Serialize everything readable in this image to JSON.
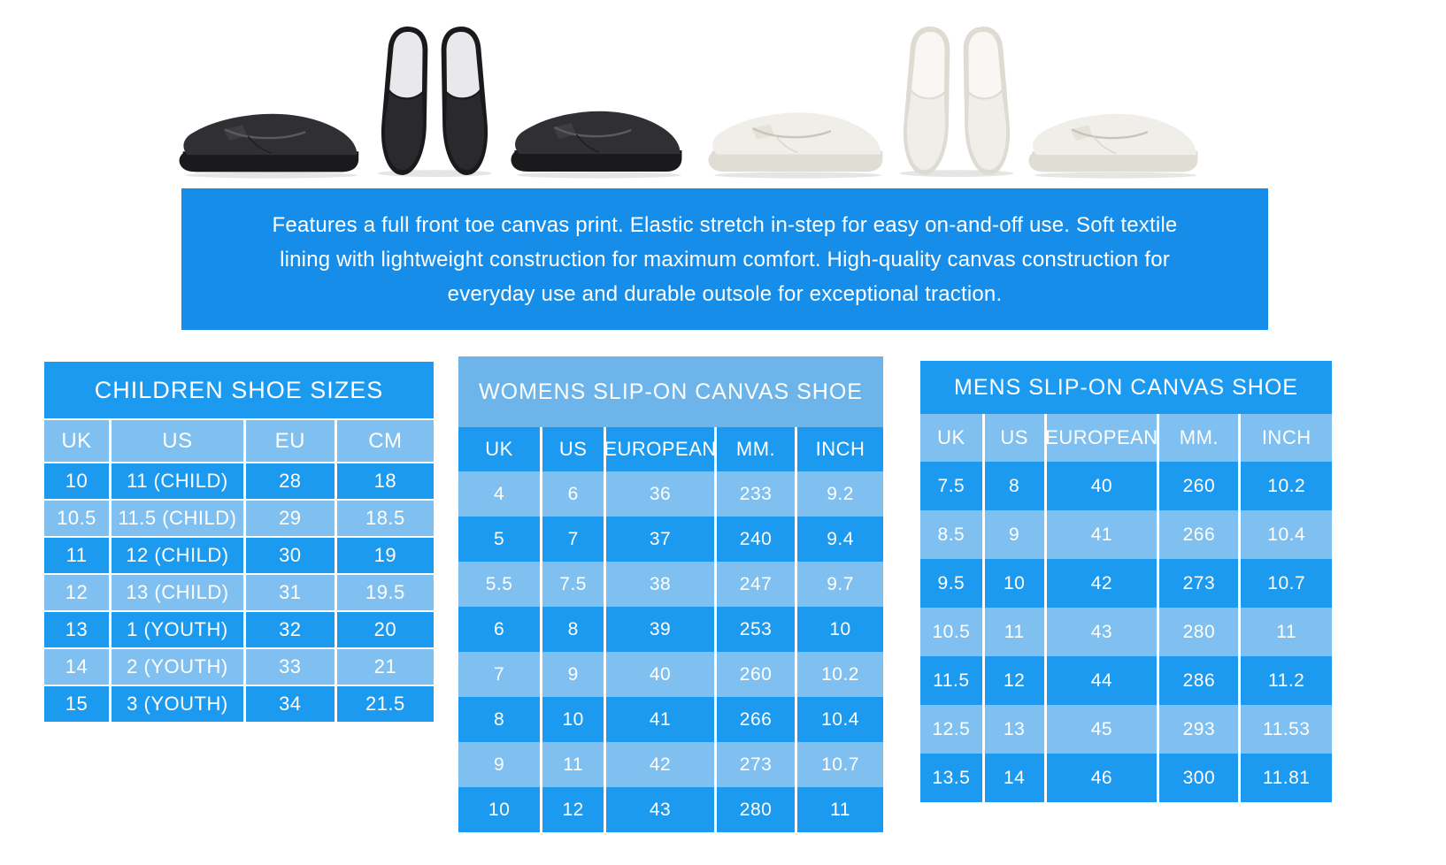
{
  "colors": {
    "banner": "#168ee9",
    "bright": "#1b9af0",
    "light": "#7fc0f0",
    "medium": "#6cb4ea",
    "shoe_black_body": "#303034",
    "shoe_black_sole": "#1a1a1c",
    "shoe_black_top": "#2a2a2e",
    "shoe_black_insole": "#e9e9ec",
    "shoe_white_body": "#f0eee8",
    "shoe_white_sole": "#e0ddd4",
    "shoe_white_insole": "#f8f7f4"
  },
  "shoes": {
    "black": {
      "label": "black slip-on canvas shoes",
      "views": [
        "side-view",
        "top-view-pair",
        "side-view"
      ]
    },
    "white": {
      "label": "white slip-on canvas shoes",
      "views": [
        "side-view",
        "top-view-pair",
        "side-view"
      ]
    }
  },
  "banner": {
    "lines": [
      "Features a full front toe canvas print. Elastic stretch in-step for easy on-and-off use. Soft textile",
      "lining with lightweight construction for maximum comfort. High-quality canvas construction for",
      "everyday use and durable outsole for exceptional traction."
    ]
  },
  "tables": {
    "children": {
      "title": "CHILDREN SHOE SIZES",
      "title_shade": "bright",
      "header_shade": "light",
      "first_row_shade": "bright",
      "row_separators": true,
      "col_pct": [
        16.6,
        34.5,
        23.4,
        25.5
      ],
      "headers": [
        "UK",
        "US",
        "EU",
        "CM"
      ],
      "rows": [
        [
          "10",
          "11 (CHILD)",
          "28",
          "18"
        ],
        [
          "10.5",
          "11.5 (CHILD)",
          "29",
          "18.5"
        ],
        [
          "11",
          "12 (CHILD)",
          "30",
          "19"
        ],
        [
          "12",
          "13 (CHILD)",
          "31",
          "19.5"
        ],
        [
          "13",
          "1 (YOUTH)",
          "32",
          "20"
        ],
        [
          "14",
          "2 (YOUTH)",
          "33",
          "21"
        ],
        [
          "15",
          "3 (YOUTH)",
          "34",
          "21.5"
        ]
      ]
    },
    "womens": {
      "title": "WOMENS SLIP-ON CANVAS SHOE",
      "title_shade": "medium",
      "header_shade": "bright",
      "first_row_shade": "light",
      "row_separators": false,
      "col_pct": [
        19.2,
        15.0,
        26.0,
        19.0,
        20.8
      ],
      "headers": [
        "UK",
        "US",
        "EUROPEAN",
        "MM.",
        "INCH"
      ],
      "rows": [
        [
          "4",
          "6",
          "36",
          "233",
          "9.2"
        ],
        [
          "5",
          "7",
          "37",
          "240",
          "9.4"
        ],
        [
          "5.5",
          "7.5",
          "38",
          "247",
          "9.7"
        ],
        [
          "6",
          "8",
          "39",
          "253",
          "10"
        ],
        [
          "7",
          "9",
          "40",
          "260",
          "10.2"
        ],
        [
          "8",
          "10",
          "41",
          "266",
          "10.4"
        ],
        [
          "9",
          "11",
          "42",
          "273",
          "10.7"
        ],
        [
          "10",
          "12",
          "43",
          "280",
          "11"
        ]
      ]
    },
    "mens": {
      "title": "MENS SLIP-ON CANVAS SHOE",
      "title_shade": "bright",
      "header_shade": "light",
      "first_row_shade": "bright",
      "row_separators": false,
      "col_pct": [
        15.0,
        15.0,
        27.5,
        19.8,
        22.7
      ],
      "headers": [
        "UK",
        "US",
        "EUROPEAN",
        "MM.",
        "INCH"
      ],
      "rows": [
        [
          "7.5",
          "8",
          "40",
          "260",
          "10.2"
        ],
        [
          "8.5",
          "9",
          "41",
          "266",
          "10.4"
        ],
        [
          "9.5",
          "10",
          "42",
          "273",
          "10.7"
        ],
        [
          "10.5",
          "11",
          "43",
          "280",
          "11"
        ],
        [
          "11.5",
          "12",
          "44",
          "286",
          "11.2"
        ],
        [
          "12.5",
          "13",
          "45",
          "293",
          "11.53"
        ],
        [
          "13.5",
          "14",
          "46",
          "300",
          "11.81"
        ]
      ]
    }
  }
}
